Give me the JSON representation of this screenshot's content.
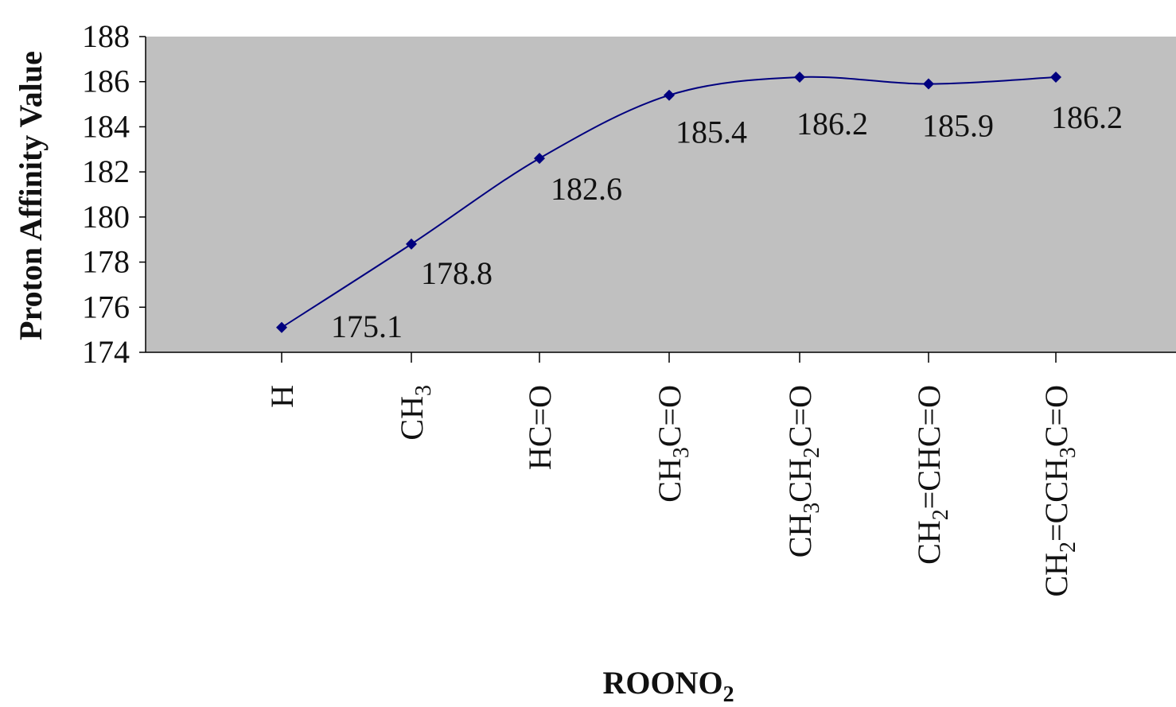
{
  "chart_data": {
    "type": "line",
    "title": "",
    "xlabel": "ROONO",
    "xlabel_sub": "2",
    "ylabel": "Proton Affinity Value",
    "ylim": [
      174,
      188
    ],
    "yticks": [
      174,
      176,
      178,
      180,
      182,
      184,
      186,
      188
    ],
    "grid": false,
    "legend": "none",
    "colors": {
      "plot_bg": "#c0c0c0",
      "line": "#00007f",
      "marker": "#00007f"
    },
    "categories": [
      [
        {
          "t": "H"
        }
      ],
      [
        {
          "t": "CH"
        },
        {
          "t": "3",
          "sub": true
        }
      ],
      [
        {
          "t": "HC=O"
        }
      ],
      [
        {
          "t": "CH"
        },
        {
          "t": "3",
          "sub": true
        },
        {
          "t": "C=O"
        }
      ],
      [
        {
          "t": "CH"
        },
        {
          "t": "3",
          "sub": true
        },
        {
          "t": "CH"
        },
        {
          "t": "2",
          "sub": true
        },
        {
          "t": "C=O"
        }
      ],
      [
        {
          "t": "CH"
        },
        {
          "t": "2",
          "sub": true
        },
        {
          "t": "=CHC=O"
        }
      ],
      [
        {
          "t": "CH"
        },
        {
          "t": "2",
          "sub": true
        },
        {
          "t": "=CCH"
        },
        {
          "t": "3",
          "sub": true
        },
        {
          "t": "C=O"
        }
      ]
    ],
    "series": [
      {
        "values": [
          175.1,
          178.8,
          182.6,
          185.4,
          186.2,
          185.9,
          186.2
        ],
        "labels": [
          "175.1",
          "178.8",
          "182.6",
          "185.4",
          "186.2",
          "185.9",
          "186.2"
        ]
      }
    ]
  }
}
